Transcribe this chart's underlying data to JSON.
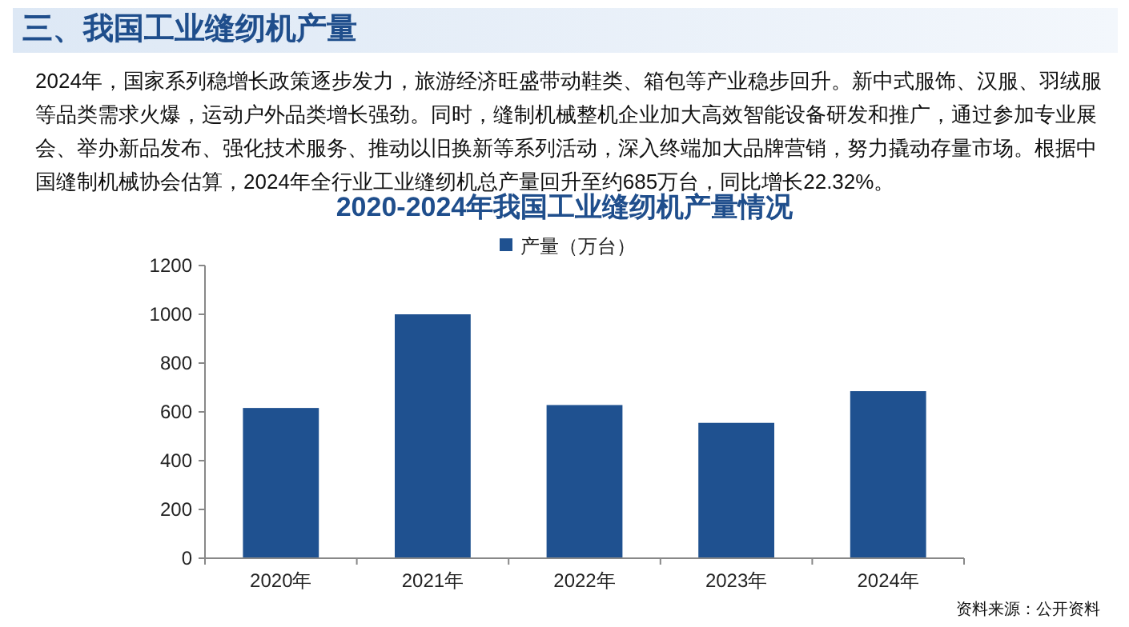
{
  "chart_data": {
    "type": "bar",
    "title": "三、我国工业缝纫机产量",
    "subtitle": "2020-2024年我国工业缝纫机产量情况",
    "annotations": [
      "2024年，国家系列稳增长政策逐步发力，旅游经济旺盛带动鞋类、箱包等产业稳步回升。新中式服饰、汉服、羽绒服等品类需求火爆，运动户外品类增长强劲。同时，缝制机械整机企业加大高效智能设备研发和推广，通过参加专业展会、举办新品发布、强化技术服务、推动以旧换新等系列活动，深入终端加大品牌营销，努力撬动存量市场。根据中国缝制机械协会估算，2024年全行业工业缝纫机总产量回升至约685万台，同比增长22.32%。",
      "资料来源：公开资料"
    ],
    "categories": [
      "2020年",
      "2021年",
      "2022年",
      "2023年",
      "2024年"
    ],
    "series": [
      {
        "name": "产量（万台）",
        "color": "#1f5190",
        "values": [
          616,
          1000,
          628,
          555,
          685
        ]
      }
    ],
    "ylim": [
      0,
      1200
    ],
    "yticks": [
      0,
      200,
      400,
      600,
      800,
      1000,
      1200
    ],
    "grid": false,
    "legend": "top"
  }
}
